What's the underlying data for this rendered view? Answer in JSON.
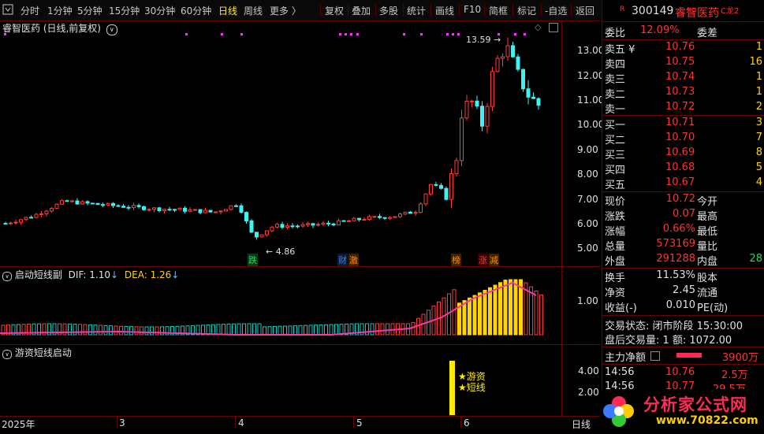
{
  "toolbar": {
    "left_items": [
      "分时",
      "1分钟",
      "5分钟",
      "15分钟",
      "30分钟",
      "60分钟",
      "日线",
      "周线",
      "更多 〉"
    ],
    "active": "日线",
    "right_items": [
      "复权",
      "叠加",
      "多股",
      "统计",
      "画线",
      "F10",
      "简框",
      "标记",
      "-自选",
      "返回"
    ]
  },
  "chart": {
    "title": "睿智医药 (日线,前复权)",
    "y_ticks": [
      "13.00",
      "12.00",
      "11.00",
      "10.00",
      "9.00",
      "8.00",
      "7.00",
      "6.00",
      "5.00"
    ],
    "high_label": "13.59",
    "low_label": "4.86",
    "markers": [
      {
        "text": "跌",
        "color": "#2ed06e"
      },
      {
        "text": "财",
        "color": "#3a7bff"
      },
      {
        "text": "激",
        "color": "#ff8c00"
      },
      {
        "text": "榜",
        "color": "#ff8c00"
      },
      {
        "text": "涨",
        "color": "#ff3333"
      },
      {
        "text": "减",
        "color": "#ff8c00"
      }
    ],
    "x_labels": [
      "2025年",
      "3",
      "4",
      "5",
      "6"
    ],
    "period_label": "日线"
  },
  "macd": {
    "title": "启动短线副",
    "dif_label": "DIF: 1.10",
    "dea_label": "DEA: 1.26",
    "y_tick": "1.00"
  },
  "lower": {
    "title": "游资短线启动",
    "y_ticks": [
      "4.00",
      "2.00"
    ],
    "signal_labels": [
      "★游资",
      "★短线"
    ]
  },
  "quote": {
    "code": "300149",
    "name": "睿智医药",
    "tag": "C龙2",
    "r_badge": "R",
    "weibi_label": "委比",
    "weibi_value": "12.09%",
    "weicha_label": "委差",
    "sell": [
      {
        "label": "卖五 ¥",
        "price": "10.76",
        "vol": "1"
      },
      {
        "label": "卖四",
        "price": "10.75",
        "vol": "16"
      },
      {
        "label": "卖三",
        "price": "10.74",
        "vol": "1"
      },
      {
        "label": "卖二",
        "price": "10.73",
        "vol": "1"
      },
      {
        "label": "卖一",
        "price": "10.72",
        "vol": "2"
      }
    ],
    "buy": [
      {
        "label": "买一",
        "price": "10.71",
        "vol": "3"
      },
      {
        "label": "买二",
        "price": "10.70",
        "vol": "7"
      },
      {
        "label": "买三",
        "price": "10.69",
        "vol": "8"
      },
      {
        "label": "买四",
        "price": "10.68",
        "vol": "5"
      },
      {
        "label": "买五",
        "price": "10.67",
        "vol": "4"
      }
    ],
    "stats": [
      {
        "l1": "现价",
        "v1": "10.72",
        "l2": "今开"
      },
      {
        "l1": "涨跌",
        "v1": "0.07",
        "l2": "最高"
      },
      {
        "l1": "涨幅",
        "v1": "0.66%",
        "l2": "最低"
      },
      {
        "l1": "总量",
        "v1": "573169",
        "l2": "量比"
      },
      {
        "l1": "外盘",
        "v1": "291288",
        "l2": "内盘",
        "v2": "28"
      }
    ],
    "stats2": [
      {
        "l1": "换手",
        "v1": "11.53%",
        "l2": "股本"
      },
      {
        "l1": "净资",
        "v1": "2.45",
        "l2": "流通"
      },
      {
        "l1": "收益(-)",
        "v1": "0.010",
        "l2": "PE(动)"
      }
    ],
    "trade_status": "交易状态: 闭市阶段 15:30:00",
    "after_hours": "盘后交易量: 1  额: 1072.00",
    "main_net_label": "主力净额",
    "main_net_value": "3900万",
    "ticks": [
      {
        "time": "14:56",
        "price": "10.76",
        "vol": "2.5万"
      },
      {
        "time": "14:56",
        "price": "10.77",
        "vol": "29.5万"
      }
    ]
  },
  "logo": {
    "text": "分析家公式网",
    "url": "www.70822.com"
  }
}
